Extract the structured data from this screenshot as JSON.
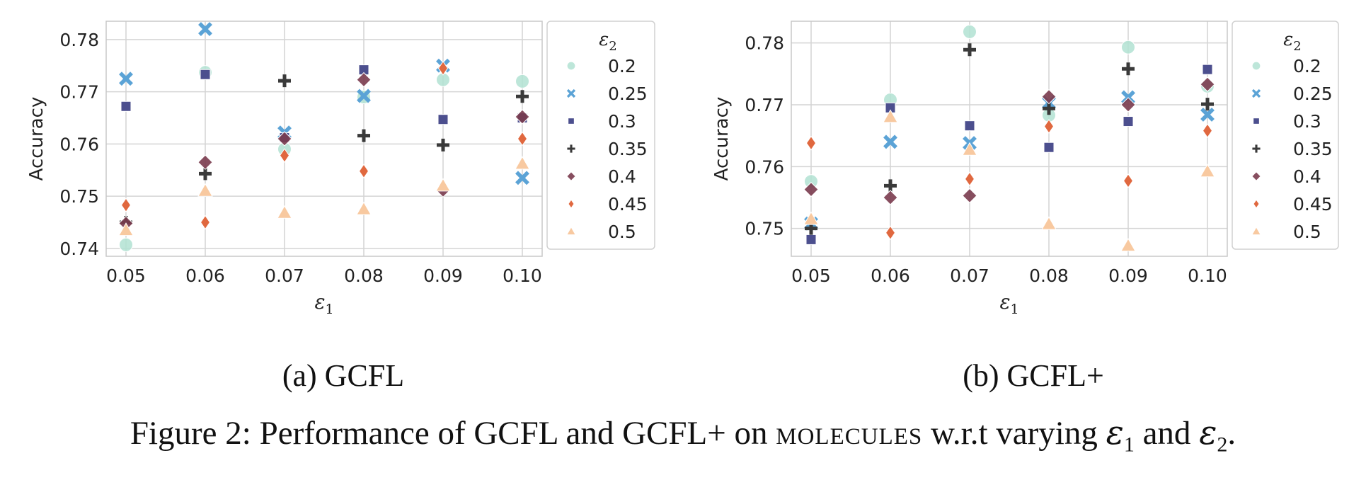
{
  "figure_caption": {
    "prefix": "Figure 2: Performance of GCFL and GCFL+ on ",
    "dataset": "molecules",
    "middle": " w.r.t varying ",
    "sym1": "ε",
    "sub1": "1",
    "and": " and ",
    "sym2": "ε",
    "sub2": "2",
    "end": "."
  },
  "legend_colors": {
    "0.2": "#b2e2d2",
    "0.25": "#5ba3d6",
    "0.3": "#4c4f8e",
    "0.35": "#3a3a3a",
    "0.4": "#7a3b4e",
    "0.45": "#e0683f",
    "0.5": "#f8c9a0"
  },
  "chart_data": [
    {
      "type": "scatter",
      "subcaption": "(a) GCFL",
      "xlabel": "ε1",
      "ylabel": "Accuracy",
      "x_ticks": [
        "0.05",
        "0.06",
        "0.07",
        "0.08",
        "0.09",
        "0.10"
      ],
      "y_ticks": [
        "0.74",
        "0.75",
        "0.76",
        "0.77",
        "0.78"
      ],
      "ylim": [
        0.7385,
        0.7835
      ],
      "grid": true,
      "legend_title": "ε2",
      "legend_placement": "outside-right",
      "series": [
        {
          "name": "0.2",
          "marker": "circle",
          "x": [
            0.05,
            0.06,
            0.07,
            0.08,
            0.09,
            0.1
          ],
          "y": [
            0.7407,
            0.7737,
            0.759,
            0.769,
            0.7723,
            0.772
          ]
        },
        {
          "name": "0.25",
          "marker": "x",
          "x": [
            0.05,
            0.06,
            0.07,
            0.08,
            0.09,
            0.1
          ],
          "y": [
            0.7725,
            0.782,
            0.7622,
            0.7692,
            0.775,
            0.7535
          ]
        },
        {
          "name": "0.3",
          "marker": "square",
          "x": [
            0.05,
            0.06,
            0.07,
            0.08,
            0.09,
            0.1
          ],
          "y": [
            0.7672,
            0.7733,
            0.7612,
            0.7742,
            0.7647,
            0.765
          ]
        },
        {
          "name": "0.35",
          "marker": "plus",
          "x": [
            0.05,
            0.06,
            0.07,
            0.08,
            0.09,
            0.1
          ],
          "y": [
            0.745,
            0.7543,
            0.7721,
            0.7616,
            0.7598,
            0.7691
          ]
        },
        {
          "name": "0.4",
          "marker": "diamond",
          "x": [
            0.05,
            0.06,
            0.07,
            0.08,
            0.09,
            0.1
          ],
          "y": [
            0.7448,
            0.7565,
            0.761,
            0.7723,
            0.7512,
            0.7652
          ]
        },
        {
          "name": "0.45",
          "marker": "thin_diamond",
          "x": [
            0.05,
            0.06,
            0.07,
            0.08,
            0.09,
            0.1
          ],
          "y": [
            0.7483,
            0.745,
            0.7578,
            0.7548,
            0.7745,
            0.761
          ]
        },
        {
          "name": "0.5",
          "marker": "triangle",
          "x": [
            0.05,
            0.06,
            0.07,
            0.08,
            0.09,
            0.1
          ],
          "y": [
            0.7435,
            0.751,
            0.7468,
            0.7475,
            0.752,
            0.7562
          ]
        }
      ]
    },
    {
      "type": "scatter",
      "subcaption": "(b) GCFL+",
      "xlabel": "ε1",
      "ylabel": "Accuracy",
      "x_ticks": [
        "0.05",
        "0.06",
        "0.07",
        "0.08",
        "0.09",
        "0.10"
      ],
      "y_ticks": [
        "0.75",
        "0.76",
        "0.77",
        "0.78"
      ],
      "ylim": [
        0.7455,
        0.7835
      ],
      "grid": true,
      "legend_title": "ε2",
      "legend_placement": "outside-right",
      "series": [
        {
          "name": "0.2",
          "marker": "circle",
          "x": [
            0.05,
            0.06,
            0.07,
            0.08,
            0.09,
            0.1
          ],
          "y": [
            0.7576,
            0.7708,
            0.7818,
            0.7683,
            0.7793,
            0.773
          ]
        },
        {
          "name": "0.25",
          "marker": "x",
          "x": [
            0.05,
            0.06,
            0.07,
            0.08,
            0.09,
            0.1
          ],
          "y": [
            0.7508,
            0.764,
            0.7638,
            0.7703,
            0.7712,
            0.7684
          ]
        },
        {
          "name": "0.3",
          "marker": "square",
          "x": [
            0.05,
            0.06,
            0.07,
            0.08,
            0.09,
            0.1
          ],
          "y": [
            0.7482,
            0.7695,
            0.7666,
            0.7631,
            0.7673,
            0.7757
          ]
        },
        {
          "name": "0.35",
          "marker": "plus",
          "x": [
            0.05,
            0.06,
            0.07,
            0.08,
            0.09,
            0.1
          ],
          "y": [
            0.75,
            0.7569,
            0.7789,
            0.7694,
            0.7758,
            0.7701
          ]
        },
        {
          "name": "0.4",
          "marker": "diamond",
          "x": [
            0.05,
            0.06,
            0.07,
            0.08,
            0.09,
            0.1
          ],
          "y": [
            0.7563,
            0.755,
            0.7553,
            0.7713,
            0.77,
            0.7733
          ]
        },
        {
          "name": "0.45",
          "marker": "thin_diamond",
          "x": [
            0.05,
            0.06,
            0.07,
            0.08,
            0.09,
            0.1
          ],
          "y": [
            0.7638,
            0.7493,
            0.758,
            0.7665,
            0.7577,
            0.7658
          ]
        },
        {
          "name": "0.5",
          "marker": "triangle",
          "x": [
            0.05,
            0.06,
            0.07,
            0.08,
            0.09,
            0.1
          ],
          "y": [
            0.7515,
            0.768,
            0.7627,
            0.7507,
            0.7472,
            0.7592
          ]
        }
      ]
    }
  ]
}
